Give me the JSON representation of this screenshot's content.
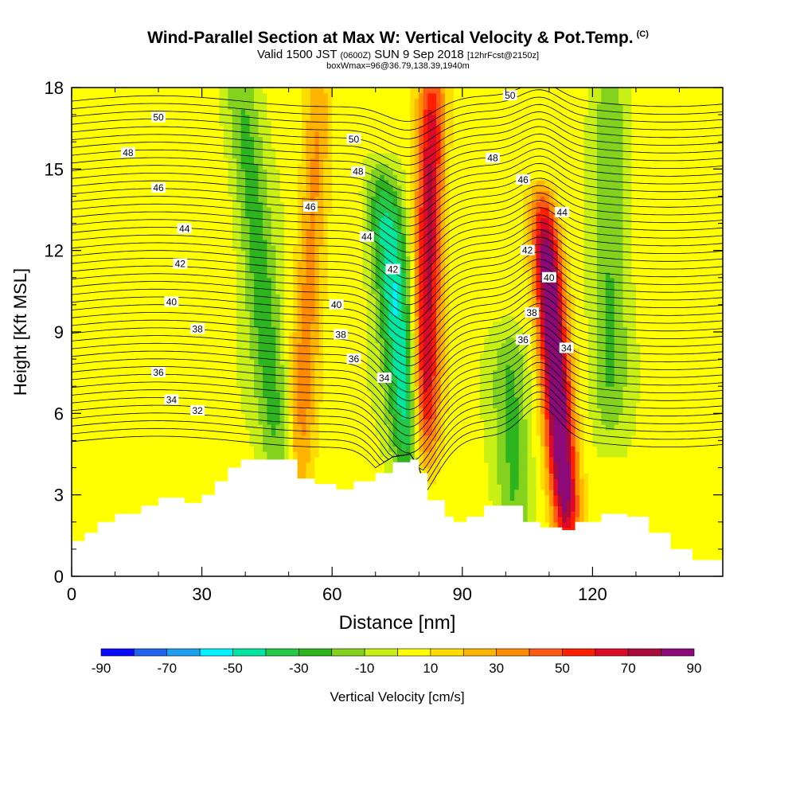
{
  "header": {
    "title": "Wind-Parallel Section at Max W: Vertical Velocity & Pot.Temp.",
    "title_mark": "(C)",
    "subtitle_main": "Valid 1500 JST",
    "subtitle_utc": "(0600Z)",
    "subtitle_date": "SUN 9 Sep 2018",
    "subtitle_fcst": "[12hrFcst@2150z]",
    "subtitle2": "boxWmax=96@36.79,138.39,1940m"
  },
  "chart_data": {
    "type": "heatmap",
    "title": "Wind-Parallel Section at Max W: Vertical Velocity & Pot.Temp.",
    "xlabel": "Distance [nm]",
    "ylabel": "Height [Kft MSL]",
    "xlim": [
      0,
      150
    ],
    "ylim": [
      0,
      18
    ],
    "x_ticks": [
      0,
      30,
      60,
      90,
      120
    ],
    "y_ticks": [
      0,
      3,
      6,
      9,
      12,
      15,
      18
    ],
    "colorbar": {
      "label": "Vertical Velocity [cm/s]",
      "levels": [
        -90,
        -80,
        -70,
        -60,
        -50,
        -40,
        -30,
        -20,
        -10,
        0,
        10,
        20,
        30,
        40,
        50,
        60,
        70,
        80,
        90
      ],
      "tick_labels": [
        "-90",
        "-70",
        "-50",
        "-30",
        "-10",
        "10",
        "30",
        "50",
        "70",
        "90"
      ],
      "colors": [
        "#0a0aff",
        "#1e64f0",
        "#1ea0f0",
        "#00f0ff",
        "#00e6a0",
        "#23c846",
        "#2db41e",
        "#82d21e",
        "#c8f014",
        "#ffff00",
        "#ffdc00",
        "#ffb400",
        "#ff8c00",
        "#ff5a14",
        "#ff1e00",
        "#dc0a28",
        "#aa0a3c",
        "#8c0a78"
      ]
    },
    "w_features": [
      {
        "kind": "ascent",
        "x_bottom": 52,
        "x_top": 57,
        "y_range": [
          3,
          18
        ],
        "peak": 30
      },
      {
        "kind": "descent",
        "x_bottom": 48,
        "x_top": 39,
        "y_range": [
          4,
          18
        ],
        "peak": -30
      },
      {
        "kind": "descent",
        "x_bottom": 79,
        "x_top": 72,
        "y_range": [
          3.5,
          14
        ],
        "peak": -55
      },
      {
        "kind": "ascent",
        "x_bottom": 81,
        "x_top": 83,
        "y_range": [
          4,
          18
        ],
        "peak": 70
      },
      {
        "kind": "ascent",
        "x_bottom": 114,
        "x_top": 109,
        "y_range": [
          2,
          13
        ],
        "peak": 96
      },
      {
        "kind": "descent",
        "x_bottom": 124,
        "x_top": 124,
        "y_range": [
          6,
          18
        ],
        "peak": -25
      },
      {
        "kind": "descent",
        "x_bottom": 102,
        "x_top": 101,
        "y_range": [
          1.5,
          8
        ],
        "peak": -25
      }
    ],
    "theta_isolines": [
      {
        "level": 32,
        "label_x": 29,
        "label_y": 6.1
      },
      {
        "level": 34,
        "label_x": 23,
        "label_y": 6.5,
        "label_x2": 72,
        "label_y2": 7.3,
        "label_x3": 114,
        "label_y3": 8.4
      },
      {
        "level": 36,
        "label_x": 20,
        "label_y": 7.5,
        "label_x2": 65,
        "label_y2": 8.0,
        "label_x3": 104,
        "label_y3": 8.7
      },
      {
        "level": 38,
        "label_x": 29,
        "label_y": 9.1,
        "label_x2": 62,
        "label_y2": 8.9,
        "label_x3": 106,
        "label_y3": 9.7
      },
      {
        "level": 40,
        "label_x": 23,
        "label_y": 10.1,
        "label_x2": 61,
        "label_y2": 10.0,
        "label_x3": 110,
        "label_y3": 11.0
      },
      {
        "level": 42,
        "label_x": 25,
        "label_y": 11.5,
        "label_x2": 74,
        "label_y2": 11.3,
        "label_x3": 105,
        "label_y3": 12.0
      },
      {
        "level": 44,
        "label_x": 26,
        "label_y": 12.8,
        "label_x2": 68,
        "label_y2": 12.5,
        "label_x3": 113,
        "label_y3": 13.4
      },
      {
        "level": 46,
        "label_x": 20,
        "label_y": 14.3,
        "label_x2": 55,
        "label_y2": 13.6,
        "label_x3": 104,
        "label_y3": 14.6
      },
      {
        "level": 48,
        "label_x": 13,
        "label_y": 15.6,
        "label_x2": 66,
        "label_y2": 14.9,
        "label_x3": 97,
        "label_y3": 15.4
      },
      {
        "level": 50,
        "label_x": 20,
        "label_y": 16.9,
        "label_x2": 65,
        "label_y2": 16.1,
        "label_x3": 101,
        "label_y3": 17.7
      }
    ],
    "terrain": [
      [
        0,
        1.3
      ],
      [
        3,
        1.6
      ],
      [
        6,
        2.0
      ],
      [
        10,
        2.3
      ],
      [
        16,
        2.6
      ],
      [
        20,
        2.9
      ],
      [
        26,
        2.7
      ],
      [
        30,
        3.0
      ],
      [
        33,
        3.5
      ],
      [
        36,
        4.0
      ],
      [
        39,
        4.3
      ],
      [
        52,
        3.6
      ],
      [
        56,
        3.4
      ],
      [
        61,
        3.2
      ],
      [
        65,
        3.5
      ],
      [
        70,
        3.8
      ],
      [
        74,
        4.2
      ],
      [
        78,
        4.3
      ],
      [
        80,
        3.8
      ],
      [
        82,
        2.8
      ],
      [
        86,
        2.2
      ],
      [
        88,
        2.0
      ],
      [
        91,
        2.2
      ],
      [
        95,
        2.6
      ],
      [
        101,
        2.6
      ],
      [
        104,
        2.0
      ],
      [
        108,
        1.8
      ],
      [
        113,
        1.7
      ],
      [
        116,
        2.0
      ],
      [
        122,
        2.3
      ],
      [
        128,
        2.2
      ],
      [
        133,
        1.6
      ],
      [
        138,
        1.0
      ],
      [
        143,
        0.6
      ],
      [
        150,
        0.3
      ]
    ]
  }
}
